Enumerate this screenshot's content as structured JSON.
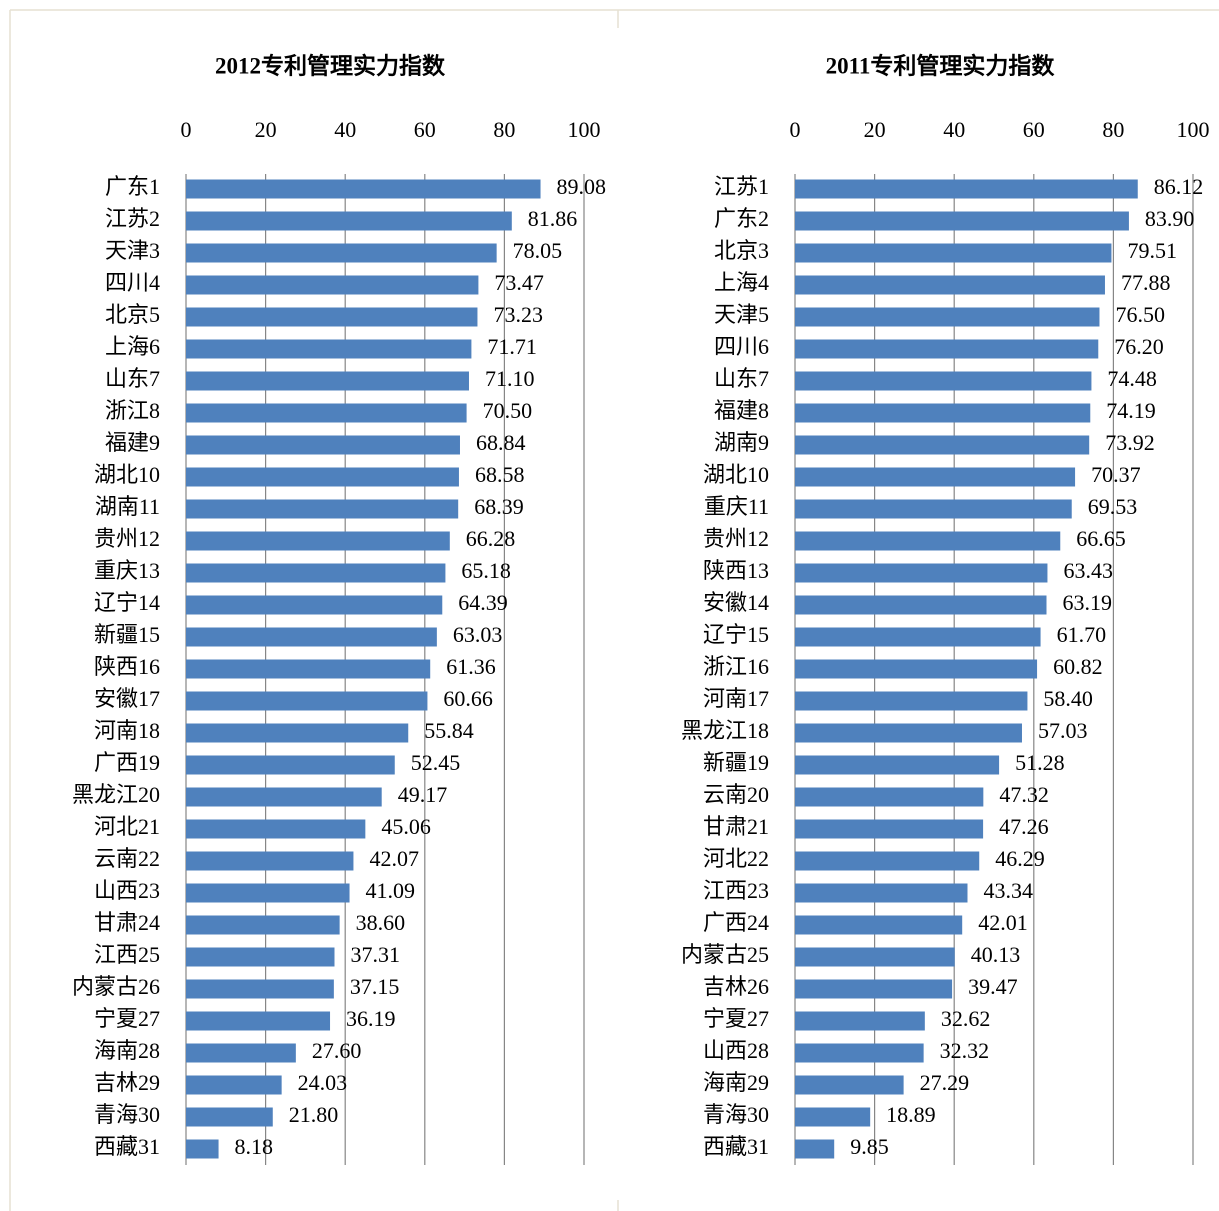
{
  "chart_data": [
    {
      "type": "bar",
      "orientation": "horizontal",
      "title": "2012专利管理实力指数",
      "categories": [
        "广东1",
        "江苏2",
        "天津3",
        "四川4",
        "北京5",
        "上海6",
        "山东7",
        "浙江8",
        "福建9",
        "湖北10",
        "湖南11",
        "贵州12",
        "重庆13",
        "辽宁14",
        "新疆15",
        "陕西16",
        "安徽17",
        "河南18",
        "广西19",
        "黑龙江20",
        "河北21",
        "云南22",
        "山西23",
        "甘肃24",
        "江西25",
        "内蒙古26",
        "宁夏27",
        "海南28",
        "吉林29",
        "青海30",
        "西藏31"
      ],
      "values": [
        89.08,
        81.86,
        78.05,
        73.47,
        73.23,
        71.71,
        71.1,
        70.5,
        68.84,
        68.58,
        68.39,
        66.28,
        65.18,
        64.39,
        63.03,
        61.36,
        60.66,
        55.84,
        52.45,
        49.17,
        45.06,
        42.07,
        41.09,
        38.6,
        37.31,
        37.15,
        36.19,
        27.6,
        24.03,
        21.8,
        8.18
      ],
      "value_labels": [
        "89.08",
        "81.86",
        "78.05",
        "73.47",
        "73.23",
        "71.71",
        "71.10",
        "70.50",
        "68.84",
        "68.58",
        "68.39",
        "66.28",
        "65.18",
        "64.39",
        "63.03",
        "61.36",
        "60.66",
        "55.84",
        "52.45",
        "49.17",
        "45.06",
        "42.07",
        "41.09",
        "38.60",
        "37.31",
        "37.15",
        "36.19",
        "27.60",
        "24.03",
        "21.80",
        "8.18"
      ],
      "color": "#4f81bd",
      "xlim": [
        0,
        100
      ],
      "xticks": [
        0,
        20,
        40,
        60,
        80,
        100
      ],
      "grid": true
    },
    {
      "type": "bar",
      "orientation": "horizontal",
      "title": "2011专利管理实力指数",
      "categories": [
        "江苏1",
        "广东2",
        "北京3",
        "上海4",
        "天津5",
        "四川6",
        "山东7",
        "福建8",
        "湖南9",
        "湖北10",
        "重庆11",
        "贵州12",
        "陕西13",
        "安徽14",
        "辽宁15",
        "浙江16",
        "河南17",
        "黑龙江18",
        "新疆19",
        "云南20",
        "甘肃21",
        "河北22",
        "江西23",
        "广西24",
        "内蒙古25",
        "吉林26",
        "宁夏27",
        "山西28",
        "海南29",
        "青海30",
        "西藏31"
      ],
      "values": [
        86.12,
        83.9,
        79.51,
        77.88,
        76.5,
        76.2,
        74.48,
        74.19,
        73.92,
        70.37,
        69.53,
        66.65,
        63.43,
        63.19,
        61.7,
        60.82,
        58.4,
        57.03,
        51.28,
        47.32,
        47.26,
        46.29,
        43.34,
        42.01,
        40.13,
        39.47,
        32.62,
        32.32,
        27.29,
        18.89,
        9.85
      ],
      "value_labels": [
        "86.12",
        "83.90",
        "79.51",
        "77.88",
        "76.50",
        "76.20",
        "74.48",
        "74.19",
        "73.92",
        "70.37",
        "69.53",
        "66.65",
        "63.43",
        "63.19",
        "61.70",
        "60.82",
        "58.40",
        "57.03",
        "51.28",
        "47.32",
        "47.26",
        "46.29",
        "43.34",
        "42.01",
        "40.13",
        "39.47",
        "32.62",
        "32.32",
        "27.29",
        "18.89",
        "9.85"
      ],
      "color": "#4f81bd",
      "xlim": [
        0,
        100
      ],
      "xticks": [
        0,
        20,
        40,
        60,
        80,
        100
      ],
      "grid": true
    }
  ]
}
